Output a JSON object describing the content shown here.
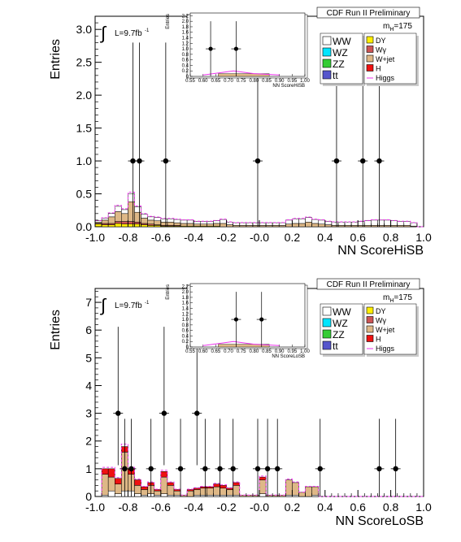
{
  "chart_data": [
    {
      "type": "bar",
      "stacked": true,
      "title": "CDF Run II Preliminary",
      "xlabel": "NN ScoreHiSB",
      "ylabel": "Entries",
      "xlim": [
        -1.0,
        1.0
      ],
      "ylim": [
        0,
        3.2
      ],
      "xticks": [
        "-1.0",
        "-0.8",
        "-0.6",
        "-0.4",
        "-0.2",
        "-0.0",
        "0.2",
        "0.4",
        "0.6",
        "0.8",
        "1.0"
      ],
      "yticks": [
        "0.0",
        "0.5",
        "1.0",
        "1.5",
        "2.0",
        "2.5",
        "3.0"
      ],
      "lumi": "L=9.7fb",
      "lumi_sup": "-1",
      "mass_label": "m",
      "mass_sub": "H",
      "mass_value": "=175",
      "bin_edges": [
        -1.0,
        -0.96,
        -0.92,
        -0.88,
        -0.84,
        -0.8,
        -0.76,
        -0.72,
        -0.68,
        -0.64,
        -0.6,
        -0.56,
        -0.52,
        -0.48,
        -0.44,
        -0.4,
        -0.36,
        -0.32,
        -0.28,
        -0.24,
        -0.2,
        -0.16,
        -0.12,
        -0.08,
        -0.04,
        0.0,
        0.04,
        0.08,
        0.12,
        0.16,
        0.2,
        0.24,
        0.28,
        0.32,
        0.36,
        0.4,
        0.44,
        0.48,
        0.52,
        0.56,
        0.6,
        0.64,
        0.68,
        0.72,
        0.76,
        0.8,
        0.84,
        0.88,
        0.92,
        0.96,
        1.0
      ],
      "series": [
        {
          "name": "DY",
          "values": [
            0.04,
            0.03,
            0.03,
            0.05,
            0.04,
            0.04,
            0.04,
            0.03,
            0.02,
            0.02,
            0.01,
            0.01,
            0.01,
            0.01,
            0.01,
            0.01,
            0.01,
            0.01,
            0.01,
            0.0,
            0.0,
            0.0,
            0.0,
            0.0,
            0.0,
            0.0,
            0.0,
            0.0,
            0.0,
            0.0,
            0.0,
            0.0,
            0.0,
            0.0,
            0.0,
            0.0,
            0.0,
            0.0,
            0.0,
            0.0,
            0.0,
            0.0,
            0.0,
            0.0,
            0.0,
            0.0,
            0.0,
            0.0,
            0.0,
            0.0
          ]
        },
        {
          "name": "Wγ",
          "values": [
            0.01,
            0.02,
            0.02,
            0.03,
            0.04,
            0.04,
            0.03,
            0.02,
            0.02,
            0.01,
            0.01,
            0.01,
            0.01,
            0.0,
            0.0,
            0.0,
            0.0,
            0.0,
            0.0,
            0.0,
            0.0,
            0.0,
            0.0,
            0.0,
            0.0,
            0.0,
            0.0,
            0.0,
            0.0,
            0.0,
            0.0,
            0.0,
            0.0,
            0.0,
            0.0,
            0.0,
            0.0,
            0.0,
            0.0,
            0.0,
            0.0,
            0.0,
            0.0,
            0.0,
            0.0,
            0.0,
            0.0,
            0.0,
            0.0,
            0.0
          ]
        },
        {
          "name": "W+jet",
          "values": [
            0.02,
            0.05,
            0.1,
            0.15,
            0.12,
            0.3,
            0.15,
            0.08,
            0.06,
            0.06,
            0.05,
            0.05,
            0.04,
            0.04,
            0.04,
            0.03,
            0.03,
            0.03,
            0.04,
            0.05,
            0.03,
            0.02,
            0.02,
            0.02,
            0.02,
            0.02,
            0.02,
            0.02,
            0.02,
            0.04,
            0.05,
            0.05,
            0.07,
            0.05,
            0.04,
            0.03,
            0.02,
            0.02,
            0.02,
            0.02,
            0.02,
            0.02,
            0.02,
            0.02,
            0.02,
            0.02,
            0.02,
            0.02,
            0.01,
            0.0
          ]
        },
        {
          "name": "WW",
          "values": [
            0.02,
            0.03,
            0.05,
            0.08,
            0.06,
            0.12,
            0.08,
            0.06,
            0.05,
            0.05,
            0.05,
            0.05,
            0.05,
            0.05,
            0.05,
            0.04,
            0.04,
            0.04,
            0.04,
            0.06,
            0.04,
            0.04,
            0.04,
            0.04,
            0.04,
            0.04,
            0.04,
            0.04,
            0.04,
            0.06,
            0.07,
            0.07,
            0.07,
            0.06,
            0.06,
            0.05,
            0.05,
            0.05,
            0.05,
            0.05,
            0.06,
            0.07,
            0.08,
            0.08,
            0.08,
            0.07,
            0.06,
            0.06,
            0.05,
            0.0
          ]
        }
      ],
      "data_points": [
        {
          "x": -0.77,
          "y": 1.0
        },
        {
          "x": -0.73,
          "y": 1.0
        },
        {
          "x": -0.57,
          "y": 1.0
        },
        {
          "x": -0.01,
          "y": 1.0
        },
        {
          "x": 0.47,
          "y": 1.0
        },
        {
          "x": 0.63,
          "y": 1.0
        },
        {
          "x": 0.73,
          "y": 1.0
        }
      ],
      "inset": {
        "xlabel": "NN ScoreHiSB",
        "ylabel": "Entries",
        "xlim": [
          0.55,
          1.0
        ],
        "ylim": [
          0,
          2.3
        ],
        "xticks": [
          "0.55",
          "0.60",
          "0.65",
          "0.70",
          "0.75",
          "0.80",
          "0.85",
          "0.90",
          "0.95",
          "1.00"
        ],
        "yticks": [
          "0",
          "0.2",
          "0.4",
          "0.6",
          "0.8",
          "1.0",
          "1.2",
          "1.4",
          "1.6",
          "1.8",
          "2.0",
          "2.2"
        ],
        "data_points": [
          {
            "x": 0.63,
            "y": 1.0
          },
          {
            "x": 0.73,
            "y": 1.0
          }
        ]
      }
    },
    {
      "type": "bar",
      "stacked": true,
      "title": "CDF Run II Preliminary",
      "xlabel": "NN ScoreLoSB",
      "ylabel": "Entries",
      "xlim": [
        -1.0,
        1.0
      ],
      "ylim": [
        0,
        7.5
      ],
      "xticks": [
        "-1.0",
        "-0.8",
        "-0.6",
        "-0.4",
        "-0.2",
        "-0.0",
        "0.2",
        "0.4",
        "0.6",
        "0.8",
        "1.0"
      ],
      "yticks": [
        "0",
        "1",
        "2",
        "3",
        "4",
        "5",
        "6",
        "7"
      ],
      "lumi": "L=9.7fb",
      "lumi_sup": "-1",
      "mass_label": "m",
      "mass_sub": "H",
      "mass_value": "=175",
      "bin_edges": [
        -1.0,
        -0.96,
        -0.92,
        -0.88,
        -0.84,
        -0.8,
        -0.76,
        -0.72,
        -0.68,
        -0.64,
        -0.6,
        -0.56,
        -0.52,
        -0.48,
        -0.44,
        -0.4,
        -0.36,
        -0.32,
        -0.28,
        -0.24,
        -0.2,
        -0.16,
        -0.12,
        -0.08,
        -0.04,
        0.0,
        0.04,
        0.08,
        0.12,
        0.16,
        0.2,
        0.24,
        0.28,
        0.32,
        0.36,
        0.4,
        0.44,
        0.48,
        0.52,
        0.56,
        0.6,
        0.64,
        0.68,
        0.72,
        0.76,
        0.8,
        0.84,
        0.88,
        0.92,
        0.96,
        1.0
      ],
      "series": [
        {
          "name": "WW",
          "values": [
            0.0,
            0.05,
            0.2,
            0.1,
            0.2,
            0.2,
            0.1,
            0.05,
            0.1,
            0.05,
            0.1,
            0.05,
            0.05,
            0.0,
            0.0,
            0.05,
            0.05,
            0.05,
            0.05,
            0.05,
            0.05,
            0.05,
            0.0,
            0.0,
            0.0,
            0.1,
            0.0,
            0.0,
            0.0,
            0.05,
            0.05,
            0.0,
            0.0,
            0.05,
            0.0,
            0.0,
            0.0,
            0.0,
            0.0,
            0.0,
            0.0,
            0.0,
            0.0,
            0.0,
            0.0,
            0.0,
            0.0,
            0.0,
            0.0,
            0.0
          ]
        },
        {
          "name": "W+jet",
          "values": [
            0.0,
            0.75,
            0.5,
            0.35,
            1.4,
            0.6,
            0.3,
            0.2,
            0.3,
            0.15,
            0.6,
            0.35,
            0.15,
            0.05,
            0.2,
            0.2,
            0.25,
            0.25,
            0.3,
            0.25,
            0.2,
            0.35,
            0.05,
            0.05,
            0.05,
            0.5,
            0.05,
            0.05,
            0.05,
            0.55,
            0.45,
            0.15,
            0.35,
            0.3,
            0.0,
            0.0,
            0.0,
            0.0,
            0.0,
            0.0,
            0.0,
            0.0,
            0.0,
            0.0,
            0.0,
            0.0,
            0.0,
            0.0,
            0.0,
            0.0
          ]
        },
        {
          "name": "H",
          "values": [
            0.0,
            0.2,
            0.3,
            0.2,
            0.2,
            0.2,
            0.2,
            0.1,
            0.1,
            0.05,
            0.2,
            0.1,
            0.05,
            0.0,
            0.05,
            0.05,
            0.05,
            0.05,
            0.1,
            0.1,
            0.05,
            0.1,
            0.0,
            0.0,
            0.0,
            0.1,
            0.0,
            0.0,
            0.0,
            0.0,
            0.0,
            0.0,
            0.0,
            0.0,
            0.0,
            0.0,
            0.0,
            0.0,
            0.0,
            0.0,
            0.0,
            0.0,
            0.0,
            0.0,
            0.0,
            0.0,
            0.0,
            0.0,
            0.0,
            0.0
          ]
        }
      ],
      "data_points": [
        {
          "x": -0.86,
          "y": 3
        },
        {
          "x": -0.82,
          "y": 1
        },
        {
          "x": -0.78,
          "y": 1
        },
        {
          "x": -0.66,
          "y": 1
        },
        {
          "x": -0.58,
          "y": 3
        },
        {
          "x": -0.48,
          "y": 1
        },
        {
          "x": -0.38,
          "y": 3
        },
        {
          "x": -0.33,
          "y": 1
        },
        {
          "x": -0.24,
          "y": 1
        },
        {
          "x": -0.16,
          "y": 1
        },
        {
          "x": -0.01,
          "y": 1
        },
        {
          "x": 0.05,
          "y": 1
        },
        {
          "x": 0.11,
          "y": 1
        },
        {
          "x": 0.37,
          "y": 1
        },
        {
          "x": 0.73,
          "y": 1
        },
        {
          "x": 0.83,
          "y": 1
        }
      ],
      "inset": {
        "xlabel": "NN ScoreLoSB",
        "ylabel": "Entries",
        "xlim": [
          0.55,
          1.0
        ],
        "ylim": [
          0,
          2.3
        ],
        "xticks": [
          "0.55",
          "0.60",
          "0.65",
          "0.70",
          "0.75",
          "0.80",
          "0.85",
          "0.90",
          "0.95",
          "1.00"
        ],
        "yticks": [
          "0",
          "0.2",
          "0.4",
          "0.6",
          "0.8",
          "1.0",
          "1.2",
          "1.4",
          "1.6",
          "1.8",
          "2.0",
          "2.2"
        ],
        "data_points": [
          {
            "x": 0.73,
            "y": 1.0
          },
          {
            "x": 0.83,
            "y": 1.0
          }
        ]
      }
    }
  ],
  "legend": {
    "left": [
      "WW",
      "WZ",
      "ZZ",
      "tt"
    ],
    "right": [
      "DY",
      "Wγ",
      "W+jet",
      "H",
      "Higgs"
    ]
  },
  "colors": {
    "WW": "#ffffff",
    "WZ": "#00e5ff",
    "ZZ": "#33cc33",
    "tt": "#5555cc",
    "DY": "#ffee00",
    "Wγ": "#cc5555",
    "W+jet": "#deb887",
    "H": "#ee1111",
    "Higgs": "#ee33ee"
  }
}
